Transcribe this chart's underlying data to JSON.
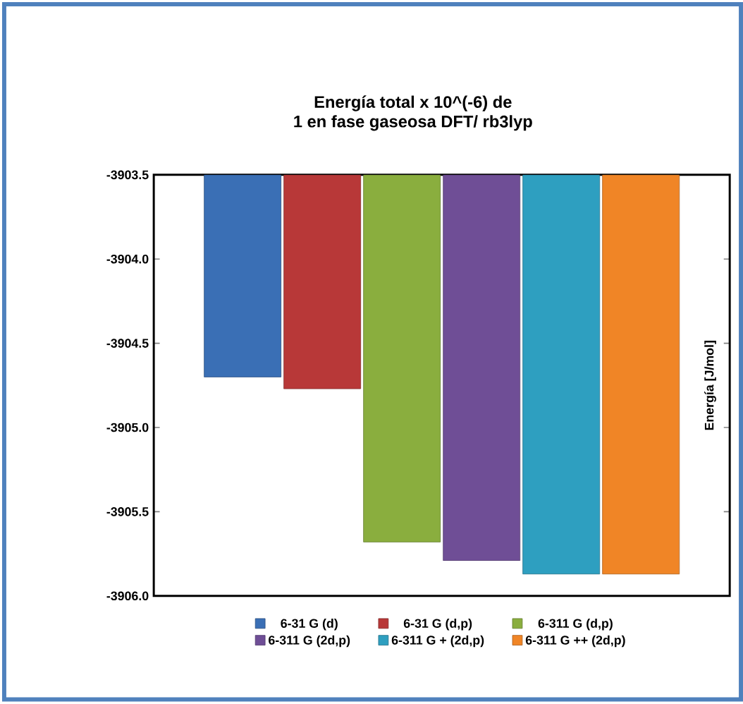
{
  "chart_data": {
    "type": "bar",
    "title": "Energía total x 10^(-6) de\n1 en fase gaseosa DFT/ rb3lyp",
    "ylabel": "Energía [J/mol]",
    "categories": [
      null
    ],
    "series": [
      {
        "name": "6-31 G (d)",
        "color": "#3a6fb5",
        "values": [
          -3904.7
        ]
      },
      {
        "name": "6-31 G (d,p)",
        "color": "#b83838",
        "values": [
          -3904.77
        ]
      },
      {
        "name": "6-311 G (d,p)",
        "color": "#8aae3e",
        "values": [
          -3905.68
        ]
      },
      {
        "name": "6-311 G (2d,p)",
        "color": "#6f4e96",
        "values": [
          -3905.79
        ]
      },
      {
        "name": "6-311 G + (2d,p)",
        "color": "#2e9fc0",
        "values": [
          -3905.87
        ]
      },
      {
        "name": "6-311 G ++ (2d,p)",
        "color": "#f08526",
        "values": [
          -3905.87
        ]
      }
    ],
    "ylim": [
      -3906.0,
      -3903.5
    ],
    "yticks": [
      {
        "value": -3906.0,
        "label": "-3906.0"
      },
      {
        "value": -3905.5,
        "label": "-3905.5"
      },
      {
        "value": -3905.0,
        "label": "-3905.0"
      },
      {
        "value": -3904.5,
        "label": "-3904.5"
      },
      {
        "value": -3904.0,
        "label": "-3904.0"
      },
      {
        "value": -3903.5,
        "label": "-3903.5"
      }
    ],
    "legend": "bottom",
    "grid": false
  }
}
